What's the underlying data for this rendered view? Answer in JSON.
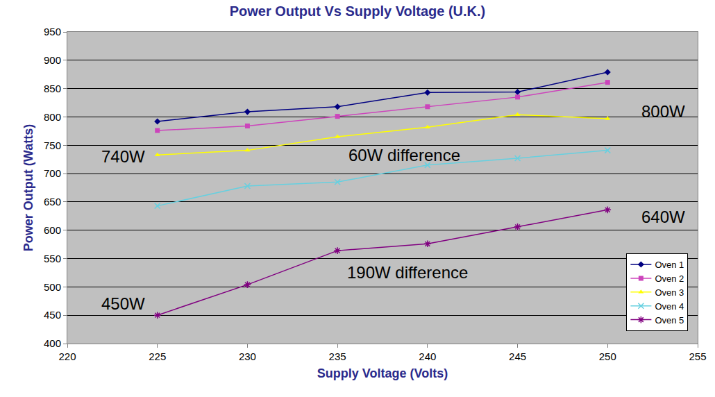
{
  "chart_data": {
    "type": "line",
    "title": "Power Output Vs Supply Voltage (U.K.)",
    "x_label": "Supply Voltage (Volts)",
    "y_label": "Power Output (Watts)",
    "x": [
      225,
      230,
      235,
      240,
      245,
      250
    ],
    "series": [
      {
        "name": "Oven 1",
        "color": "#000080",
        "marker": "diamond",
        "values": [
          792,
          809,
          818,
          843,
          844,
          879
        ]
      },
      {
        "name": "Oven 2",
        "color": "#cc44bb",
        "marker": "square",
        "values": [
          776,
          784,
          801,
          818,
          835,
          861
        ]
      },
      {
        "name": "Oven 3",
        "color": "#ffff00",
        "marker": "triangle",
        "values": [
          733,
          741,
          765,
          782,
          804,
          797
        ]
      },
      {
        "name": "Oven 4",
        "color": "#66d0e0",
        "marker": "x",
        "values": [
          643,
          678,
          685,
          715,
          727,
          741
        ]
      },
      {
        "name": "Oven 5",
        "color": "#800080",
        "marker": "star",
        "values": [
          450,
          504,
          564,
          576,
          606,
          636
        ]
      }
    ],
    "annotations": [
      {
        "text": "800W",
        "x": 253.1,
        "y": 810
      },
      {
        "text": "740W",
        "x": 223.1,
        "y": 730
      },
      {
        "text": "60W difference",
        "x": 238.7,
        "y": 732
      },
      {
        "text": "640W",
        "x": 253.1,
        "y": 623
      },
      {
        "text": "190W difference",
        "x": 238.9,
        "y": 526
      },
      {
        "text": "450W",
        "x": 223.1,
        "y": 471
      }
    ],
    "xlim": [
      220,
      255
    ],
    "xticks": [
      220,
      225,
      230,
      235,
      240,
      245,
      250,
      255
    ],
    "ylim": [
      400,
      950
    ],
    "yticks": [
      400,
      450,
      500,
      550,
      600,
      650,
      700,
      750,
      800,
      850,
      900,
      950
    ],
    "grid": true,
    "legend": "lower right"
  }
}
